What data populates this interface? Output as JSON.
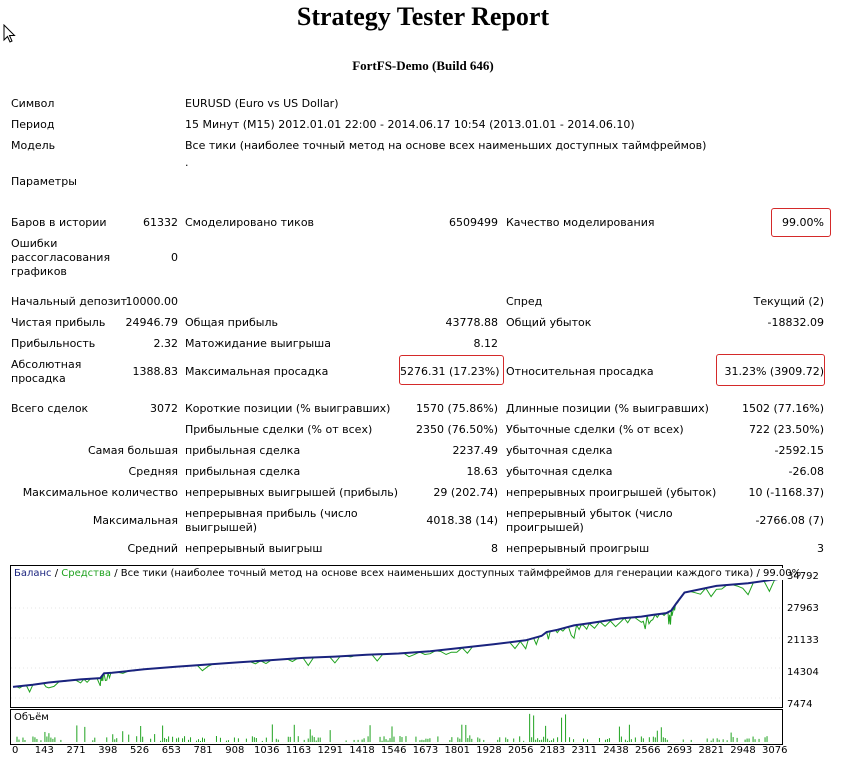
{
  "report": {
    "title": "Strategy Tester Report",
    "subtitle": "FortFS-Demo (Build 646)"
  },
  "info": {
    "symbol_label": "Символ",
    "symbol_value": "EURUSD (Euro vs US Dollar)",
    "period_label": "Период",
    "period_value": "15 Минут (M15) 2012.01.01 22:00 - 2014.06.17 10:54 (2013.01.01 - 2014.06.10)",
    "model_label": "Модель",
    "model_value": "Все тики (наиболее точный метод на основе всех наименьших доступных таймфреймов)",
    "params_label": "Параметры",
    "params_value": "."
  },
  "stats": {
    "bars_label": "Баров в истории",
    "bars_value": "61332",
    "ticks_label": "Смоделировано тиков",
    "ticks_value": "6509499",
    "quality_label": "Качество моделирования",
    "quality_value": "99.00%",
    "errors_label": "Ошибки рассогласования графиков",
    "errors_value": "0",
    "deposit_label": "Начальный депозит",
    "deposit_value": "10000.00",
    "spread_label": "Спред",
    "spread_value": "Текущий (2)",
    "net_label": "Чистая прибыль",
    "net_value": "24946.79",
    "gross_profit_label": "Общая прибыль",
    "gross_profit_value": "43778.88",
    "gross_loss_label": "Общий убыток",
    "gross_loss_value": "-18832.09",
    "pf_label": "Прибыльность",
    "pf_value": "2.32",
    "expect_label": "Матожидание выигрыша",
    "expect_value": "8.12",
    "abs_dd_label": "Абсолютная просадка",
    "abs_dd_value": "1388.83",
    "max_dd_label": "Максимальная просадка",
    "max_dd_value": "5276.31 (17.23%)",
    "rel_dd_label": "Относительная просадка",
    "rel_dd_value": "31.23% (3909.72)",
    "trades_label": "Всего сделок",
    "trades_value": "3072",
    "short_label": "Короткие позиции (% выигравших)",
    "short_value": "1570 (75.86%)",
    "long_label": "Длинные позиции (% выигравших)",
    "long_value": "1502 (77.16%)",
    "win_label": "Прибыльные сделки (% от всех)",
    "win_value": "2350 (76.50%)",
    "loss_label": "Убыточные сделки (% от всех)",
    "loss_value": "722 (23.50%)",
    "largest_label": "Самая большая",
    "largest_win_label": "прибыльная сделка",
    "largest_win_value": "2237.49",
    "largest_loss_label": "убыточная сделка",
    "largest_loss_value": "-2592.15",
    "avg_label": "Средняя",
    "avg_win_label": "прибыльная сделка",
    "avg_win_value": "18.63",
    "avg_loss_label": "убыточная сделка",
    "avg_loss_value": "-26.08",
    "maxcnt_label": "Максимальное количество",
    "maxcnt_win_label": "непрерывных выигрышей (прибыль)",
    "maxcnt_win_value": "29 (202.74)",
    "maxcnt_loss_label": "непрерывных проигрышей (убыток)",
    "maxcnt_loss_value": "10 (-1168.37)",
    "maximal_label": "Максимальная",
    "maximal_win_label": "непрерывная прибыль (число выигрышей)",
    "maximal_win_value": "4018.38 (14)",
    "maximal_loss_label": "непрерывный убыток (число проигрышей)",
    "maximal_loss_value": "-2766.08 (7)",
    "avgc_label": "Средний",
    "avgc_win_label": "непрерывный выигрыш",
    "avgc_win_value": "8",
    "avgc_loss_label": "непрерывный проигрыш",
    "avgc_loss_value": "3"
  },
  "colors": {
    "balance": "#1a237e",
    "equity": "#1fa21f",
    "volume": "#1fa21f",
    "annotation": "#d42a2a"
  },
  "chart_data": {
    "type": "line",
    "legend": {
      "balance": "Баланс",
      "sep1": " / ",
      "equity": "Средства",
      "rest": " / Все тики (наиболее точный метод на основе всех наименьших доступных таймфреймов для генерации каждого тика) / 99.00%"
    },
    "ylim": [
      7474,
      34792
    ],
    "yticks": [
      "34792",
      "27963",
      "21133",
      "14304",
      "7474"
    ],
    "xlim": [
      0,
      3072
    ],
    "xticks": [
      "0",
      "143",
      "271",
      "398",
      "526",
      "653",
      "781",
      "908",
      "1036",
      "1163",
      "1291",
      "1418",
      "1546",
      "1673",
      "1801",
      "1928",
      "2056",
      "2183",
      "2311",
      "2438",
      "2566",
      "2693",
      "2821",
      "2948",
      "3076"
    ],
    "series": [
      {
        "name": "Баланс",
        "x": [
          0,
          80,
          143,
          271,
          350,
          365,
          398,
          526,
          653,
          781,
          908,
          1036,
          1163,
          1291,
          1418,
          1546,
          1673,
          1801,
          1928,
          2056,
          2120,
          2140,
          2183,
          2250,
          2311,
          2438,
          2520,
          2566,
          2620,
          2640,
          2660,
          2693,
          2821,
          2948,
          3076
        ],
        "y": [
          10000,
          10500,
          11000,
          11700,
          12000,
          13100,
          13200,
          14000,
          14600,
          15100,
          15600,
          16100,
          16600,
          16900,
          17300,
          17600,
          18100,
          18900,
          19700,
          20600,
          21600,
          22500,
          23000,
          24000,
          24500,
          25600,
          26000,
          26400,
          26800,
          27400,
          29000,
          31500,
          33000,
          33600,
          34600
        ]
      }
    ]
  },
  "volume_data": {
    "label": "Объём"
  }
}
